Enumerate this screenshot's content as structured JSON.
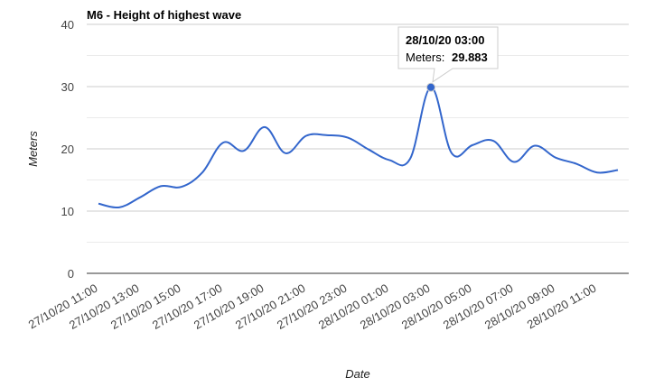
{
  "chart_data": {
    "type": "line",
    "title": "M6 - Height of highest wave",
    "xlabel": "Date",
    "ylabel": "Meters",
    "ylim": [
      0,
      40
    ],
    "yticks": [
      0,
      10,
      20,
      30,
      40
    ],
    "grid": true,
    "legend": "none",
    "line_color": "#3366cc",
    "x_tick_labels": [
      "27/10/20 11:00",
      "27/10/20 13:00",
      "27/10/20 15:00",
      "27/10/20 17:00",
      "27/10/20 19:00",
      "27/10/20 21:00",
      "27/10/20 23:00",
      "28/10/20 01:00",
      "28/10/20 03:00",
      "28/10/20 05:00",
      "28/10/20 07:00",
      "28/10/20 09:00",
      "28/10/20 11:00"
    ],
    "x": [
      "27/10/20 11:00",
      "27/10/20 12:00",
      "27/10/20 13:00",
      "27/10/20 14:00",
      "27/10/20 15:00",
      "27/10/20 16:00",
      "27/10/20 17:00",
      "27/10/20 18:00",
      "27/10/20 19:00",
      "27/10/20 20:00",
      "27/10/20 21:00",
      "27/10/20 22:00",
      "27/10/20 23:00",
      "28/10/20 00:00",
      "28/10/20 01:00",
      "28/10/20 02:00",
      "28/10/20 03:00",
      "28/10/20 04:00",
      "28/10/20 05:00",
      "28/10/20 06:00",
      "28/10/20 07:00",
      "28/10/20 08:00",
      "28/10/20 09:00",
      "28/10/20 10:00",
      "28/10/20 11:00",
      "28/10/20 12:00"
    ],
    "series": [
      {
        "values": [
          11.2,
          10.6,
          12.2,
          14.0,
          13.9,
          16.2,
          21.0,
          19.7,
          23.5,
          19.3,
          22.1,
          22.2,
          21.8,
          19.9,
          18.2,
          18.4,
          29.883,
          19.3,
          20.6,
          21.3,
          17.9,
          20.5,
          18.6,
          17.6,
          16.2,
          16.6
        ]
      }
    ],
    "tooltip": {
      "point_index": 16,
      "date": "28/10/20 03:00",
      "label": "Meters:",
      "value": "29.883"
    }
  }
}
